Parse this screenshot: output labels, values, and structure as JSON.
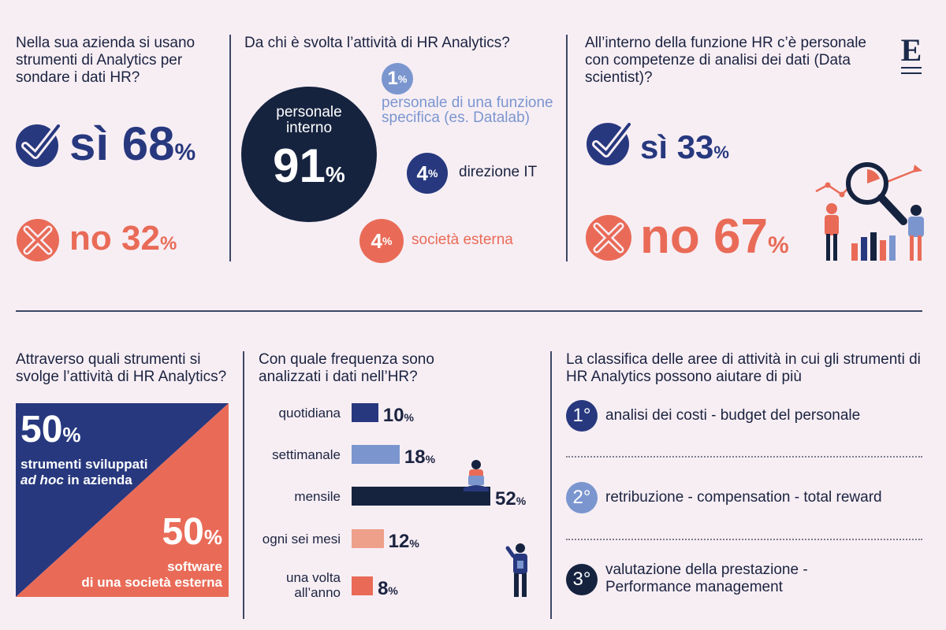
{
  "brand": {
    "logo_letter": "E"
  },
  "colors": {
    "navy": "#1b2a4a",
    "blue": "#27387e",
    "lightblue": "#7b96cf",
    "coral": "#e96b57",
    "salmon": "#eea08b",
    "bg": "#f7eef4"
  },
  "q1": {
    "question": "Nella sua azienda si usano strumenti di Analytics per sondare i dati HR?",
    "yes_label": "sì",
    "yes_value": "68",
    "yes_unit": "%",
    "no_label": "no",
    "no_value": "32",
    "no_unit": "%"
  },
  "q2": {
    "question": "Da chi è svolta l’attività di HR Analytics?",
    "main_label": "personale interno",
    "main_value": "91",
    "main_unit": "%",
    "items": [
      {
        "value": "1",
        "unit": "%",
        "label": "personale di una funzione specifica (es. Datalab)"
      },
      {
        "value": "4",
        "unit": "%",
        "label": "direzione IT"
      },
      {
        "value": "4",
        "unit": "%",
        "label": "società esterna"
      }
    ]
  },
  "q3": {
    "question": "All’interno della funzione HR c’è personale con competenze di analisi dei dati (Data scientist)?",
    "yes_label": "sì",
    "yes_value": "33",
    "yes_unit": "%",
    "no_label": "no",
    "no_value": "67",
    "no_unit": "%"
  },
  "q4": {
    "question": "Attraverso quali strumenti si svolge l’attività di HR Analytics?",
    "a_value": "50",
    "a_unit": "%",
    "a_label_1": "strumenti sviluppati",
    "a_label_2_italic": "ad hoc",
    "a_label_2_rest": " in azienda",
    "b_value": "50",
    "b_unit": "%",
    "b_label_1": "software",
    "b_label_2": "di una società esterna"
  },
  "q5": {
    "question": "Con quale frequenza sono analizzati i dati nell’HR?",
    "chart_data": {
      "type": "bar",
      "orientation": "horizontal",
      "categories": [
        "quotidiana",
        "settimanale",
        "mensile",
        "ogni sei mesi",
        "una volta all’anno"
      ],
      "values": [
        10,
        18,
        52,
        12,
        8
      ],
      "unit": "%",
      "colors": [
        "#27387e",
        "#7b96cf",
        "#16233f",
        "#eea08b",
        "#e96b57"
      ]
    }
  },
  "q6": {
    "question": "La classifica delle aree di attività in cui gli strumenti di HR Analytics possono aiutare di più",
    "ranks": [
      {
        "rank": "1°",
        "label": "analisi dei costi - budget del personale"
      },
      {
        "rank": "2°",
        "label": "retribuzione - compensation - total reward"
      },
      {
        "rank": "3°",
        "label": "valutazione della prestazione - Performance management"
      }
    ]
  }
}
